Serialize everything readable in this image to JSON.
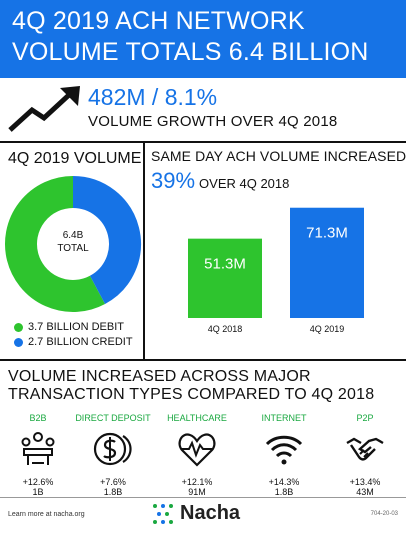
{
  "header": {
    "line1": "4Q 2019 ACH NETWORK",
    "line2": "VOLUME TOTALS 6.4 BILLION"
  },
  "growth": {
    "headline": "482M / 8.1%",
    "subtitle": "VOLUME GROWTH OVER 4Q 2018"
  },
  "colors": {
    "blue": "#1673e6",
    "green": "#2ec42e",
    "accent_green": "#1aa840"
  },
  "icons": [
    "trend-arrow-icon",
    "meeting-table-icon",
    "dollar-coin-icon",
    "heart-pulse-icon",
    "wifi-icon",
    "handshake-icon",
    "nacha-logo-icon"
  ],
  "chart_data": [
    {
      "type": "pie",
      "title": "4Q 2019 VOLUME",
      "center_label": [
        "6.4B",
        "TOTAL"
      ],
      "slices": [
        {
          "name": "3.7 BILLION DEBIT",
          "value": 3.7,
          "color": "#2ec42e"
        },
        {
          "name": "2.7 BILLION CREDIT",
          "value": 2.7,
          "color": "#1673e6"
        }
      ],
      "legend": "bottom-left"
    },
    {
      "type": "bar",
      "title": "SAME DAY ACH VOLUME INCREASED",
      "highlight": "39%",
      "subtitle": "OVER 4Q 2018",
      "categories": [
        "4Q 2018",
        "4Q 2019"
      ],
      "values": [
        51.3,
        71.3
      ],
      "value_labels": [
        "51.3M",
        "71.3M"
      ],
      "colors": [
        "#2ec42e",
        "#1673e6"
      ],
      "grid": false
    }
  ],
  "transactions": {
    "title_line1": "VOLUME INCREASED ACROSS MAJOR",
    "title_line2": "TRANSACTION TYPES COMPARED TO 4Q 2018",
    "items": [
      {
        "name": "B2B",
        "pct": "+12.6%",
        "amount": "1B",
        "icon": "meeting-table-icon"
      },
      {
        "name": "DIRECT DEPOSIT",
        "pct": "+7.6%",
        "amount": "1.8B",
        "icon": "dollar-coin-icon"
      },
      {
        "name": "HEALTHCARE",
        "pct": "+12.1%",
        "amount": "91M",
        "icon": "heart-pulse-icon"
      },
      {
        "name": "INTERNET",
        "pct": "+14.3%",
        "amount": "1.8B",
        "icon": "wifi-icon"
      },
      {
        "name": "P2P",
        "pct": "+13.4%",
        "amount": "43M",
        "icon": "handshake-icon"
      }
    ]
  },
  "footer": {
    "learn_more": "Learn more at nacha.org",
    "brand": "Nacha",
    "code": "704-20-03"
  }
}
